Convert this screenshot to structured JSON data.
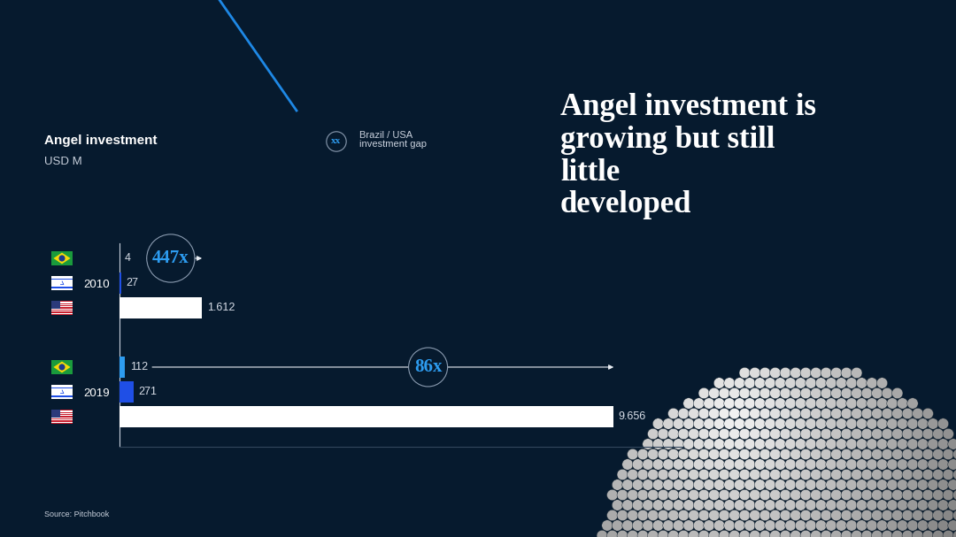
{
  "chart_data": {
    "type": "bar",
    "orientation": "horizontal",
    "title": "Angel investment is\ngrowing but still\nlittle\ndeveloped",
    "subtitle": "Angel investment",
    "unit_label": "USD M",
    "source": "Source: Pitchbook",
    "legend_note": {
      "symbol": "xx",
      "text": "Brazil / USA\ninvestment gap"
    },
    "categories": [
      "2010",
      "2019"
    ],
    "series": [
      {
        "color": "#2d9cf0",
        "values": [
          4,
          112
        ]
      },
      {
        "color": "#1f4fe6",
        "values": [
          27,
          271
        ]
      },
      {
        "color": "#ffffff",
        "values": [
          1612,
          9656
        ],
        "value_labels": [
          "1.612",
          "9.656"
        ]
      }
    ],
    "annotations": [
      {
        "category": "2010",
        "text": "447x"
      },
      {
        "category": "2019",
        "text": "86x"
      }
    ],
    "xlim": [
      0,
      11000
    ],
    "xticks": [],
    "data_labels": true,
    "tick_labels": "y",
    "grid": false
  }
}
